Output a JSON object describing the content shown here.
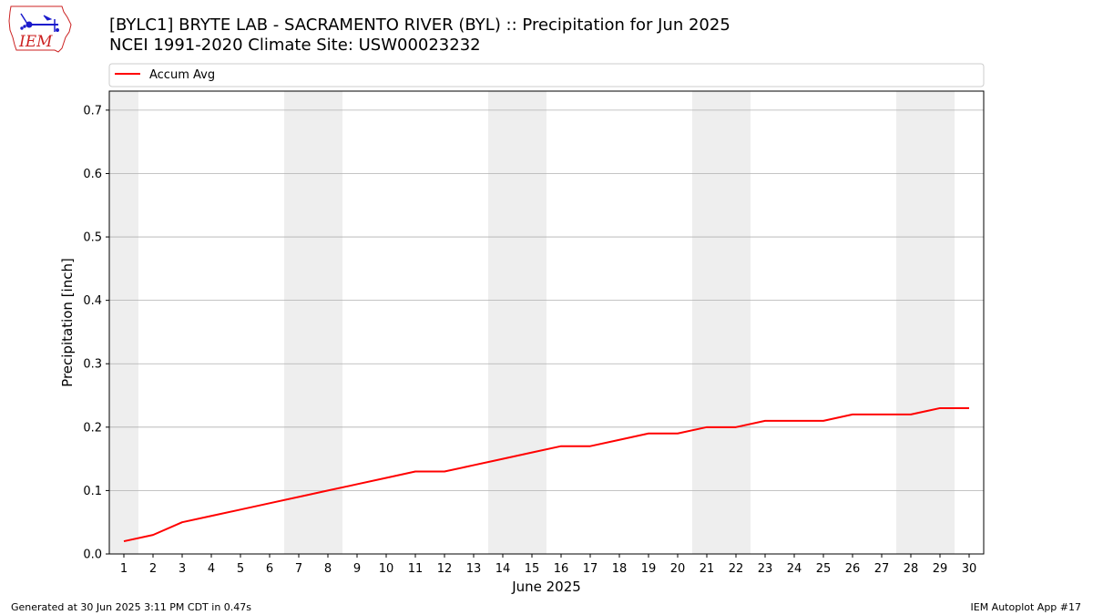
{
  "header": {
    "title_line1": "[BYLC1] BRYTE LAB - SACRAMENTO RIVER (BYL) :: Precipitation for Jun 2025",
    "title_line2": "NCEI 1991-2020 Climate Site: USW00023232"
  },
  "logo": {
    "text": "IEM"
  },
  "footer": {
    "generated": "Generated at 30 Jun 2025 3:11 PM CDT in 0.47s",
    "app": "IEM Autoplot App #17"
  },
  "colors": {
    "series": "#ff0000",
    "weekend_band": "#eeeeee",
    "grid": "#b0b0b0",
    "logo": "#cc2222",
    "logo_icon": "#1a1acc"
  },
  "chart_data": {
    "type": "line",
    "title": "[BYLC1] BRYTE LAB - SACRAMENTO RIVER (BYL) :: Precipitation for Jun 2025",
    "subtitle": "NCEI 1991-2020 Climate Site: USW00023232",
    "xlabel": "June 2025",
    "ylabel": "Precipitation [inch]",
    "xlim": [
      0.5,
      30.5
    ],
    "ylim": [
      0.0,
      0.73
    ],
    "x_ticks": [
      1,
      2,
      3,
      4,
      5,
      6,
      7,
      8,
      9,
      10,
      11,
      12,
      13,
      14,
      15,
      16,
      17,
      18,
      19,
      20,
      21,
      22,
      23,
      24,
      25,
      26,
      27,
      28,
      29,
      30
    ],
    "x_tick_labels": [
      "1",
      "2",
      "3",
      "4",
      "5",
      "6",
      "7",
      "8",
      "9",
      "10",
      "11",
      "12",
      "13",
      "14",
      "15",
      "16",
      "17",
      "18",
      "19",
      "20",
      "21",
      "22",
      "23",
      "24",
      "25",
      "26",
      "27",
      "28",
      "29",
      "30"
    ],
    "y_ticks": [
      0.0,
      0.1,
      0.2,
      0.3,
      0.4,
      0.5,
      0.6,
      0.7
    ],
    "y_tick_labels": [
      "0.0",
      "0.1",
      "0.2",
      "0.3",
      "0.4",
      "0.5",
      "0.6",
      "0.7"
    ],
    "grid": "horizontal",
    "legend": {
      "position": "top",
      "entries": [
        "Accum Avg"
      ]
    },
    "weekend_bands": [
      [
        0.5,
        1.5
      ],
      [
        6.5,
        8.5
      ],
      [
        13.5,
        15.5
      ],
      [
        20.5,
        22.5
      ],
      [
        27.5,
        29.5
      ]
    ],
    "series": [
      {
        "name": "Accum Avg",
        "x": [
          1,
          2,
          3,
          4,
          5,
          6,
          7,
          8,
          9,
          10,
          11,
          12,
          13,
          14,
          15,
          16,
          17,
          18,
          19,
          20,
          21,
          22,
          23,
          24,
          25,
          26,
          27,
          28,
          29,
          30
        ],
        "values": [
          0.02,
          0.03,
          0.05,
          0.06,
          0.07,
          0.08,
          0.09,
          0.1,
          0.11,
          0.12,
          0.13,
          0.13,
          0.14,
          0.15,
          0.16,
          0.17,
          0.17,
          0.18,
          0.19,
          0.19,
          0.2,
          0.2,
          0.21,
          0.21,
          0.21,
          0.22,
          0.22,
          0.22,
          0.23,
          0.23
        ]
      }
    ]
  }
}
